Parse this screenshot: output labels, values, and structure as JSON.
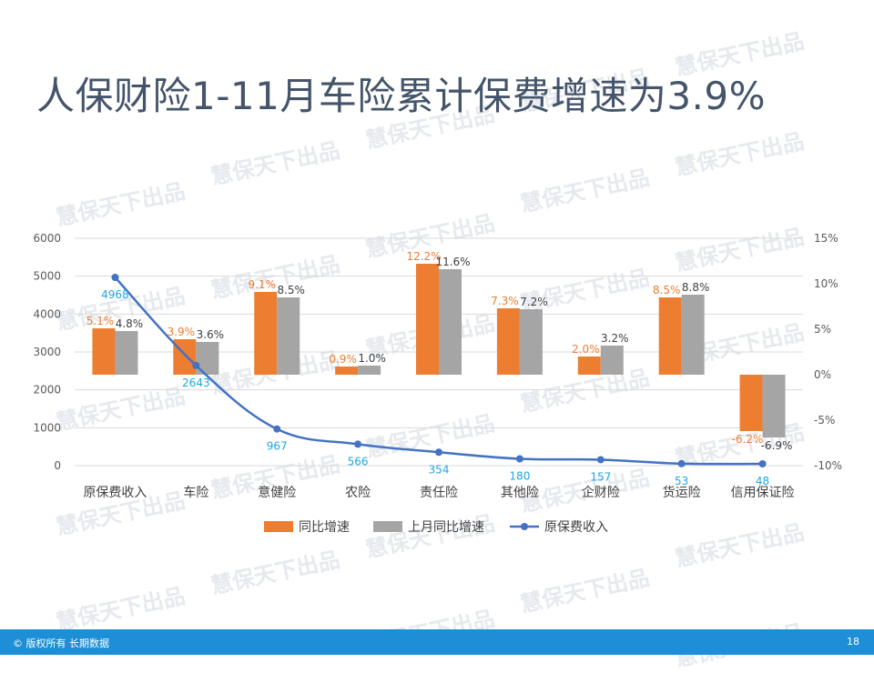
{
  "title": "人保财险1-11月车险累计保费增速为3.9%",
  "watermark": "慧保天下出品",
  "footer": {
    "copyright": "© 版权所有 长期数据",
    "page_number": "18"
  },
  "colors": {
    "bar_current": "#ed7d31",
    "bar_previous": "#a5a5a5",
    "line": "#4472c4",
    "label_line": "#1ea7e1",
    "axis_text": "#595959",
    "grid": "#d9d9d9",
    "title": "#44546a",
    "footer_bg": "#1e8fd6"
  },
  "chart_data": {
    "type": "bar",
    "categories": [
      "原保费收入",
      "车险",
      "意健险",
      "农险",
      "责任险",
      "其他险",
      "企财险",
      "货运险",
      "信用保证险"
    ],
    "series": [
      {
        "name": "同比增速",
        "kind": "bar",
        "axis": "right",
        "values": [
          5.1,
          3.9,
          9.1,
          0.9,
          12.2,
          7.3,
          2.0,
          8.5,
          -6.2
        ],
        "labels": [
          "5.1%",
          "3.9%",
          "9.1%",
          "0.9%",
          "12.2%",
          "7.3%",
          "2.0%",
          "8.5%",
          "-6.2%"
        ]
      },
      {
        "name": "上月同比增速",
        "kind": "bar",
        "axis": "right",
        "values": [
          4.8,
          3.6,
          8.5,
          1.0,
          11.6,
          7.2,
          3.2,
          8.8,
          -6.9
        ],
        "labels": [
          "4.8%",
          "3.6%",
          "8.5%",
          "1.0%",
          "11.6%",
          "7.2%",
          "3.2%",
          "8.8%",
          "-6.9%"
        ]
      },
      {
        "name": "原保费收入",
        "kind": "line",
        "axis": "left",
        "values": [
          4968,
          2643,
          967,
          566,
          354,
          180,
          157,
          53,
          48
        ],
        "labels": [
          "4968",
          "2643",
          "967",
          "566",
          "354",
          "180",
          "157",
          "53",
          "48"
        ]
      }
    ],
    "y_left": {
      "min": 0,
      "max": 6000,
      "ticks": [
        "0",
        "1000",
        "2000",
        "3000",
        "4000",
        "5000",
        "6000"
      ]
    },
    "y_right": {
      "min": -10,
      "max": 15,
      "ticks": [
        "-10%",
        "-5%",
        "0%",
        "5%",
        "10%",
        "15%"
      ]
    },
    "legend_position": "bottom",
    "grid": true
  }
}
